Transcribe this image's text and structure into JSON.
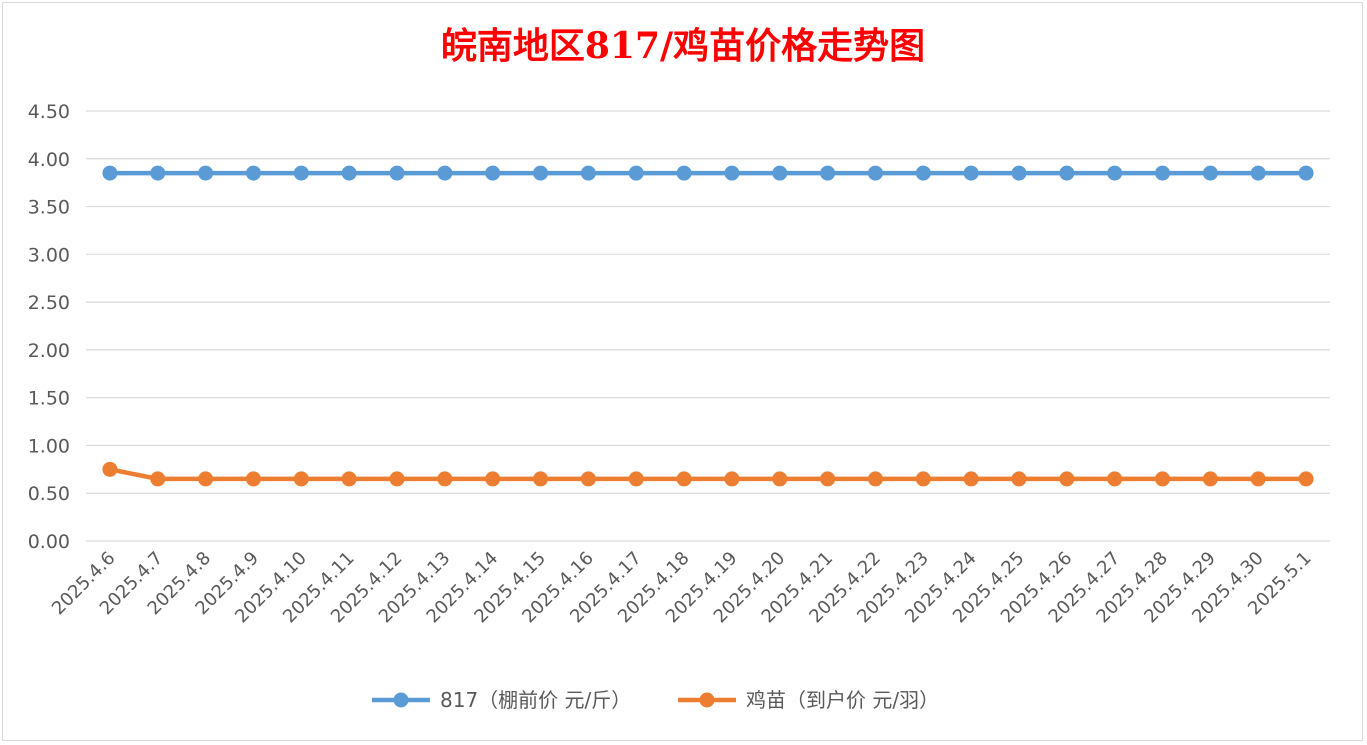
{
  "chart_data": {
    "type": "line",
    "title": "皖南地区817/鸡苗价格走势图",
    "categories": [
      "2025.4.6",
      "2025.4.7",
      "2025.4.8",
      "2025.4.9",
      "2025.4.10",
      "2025.4.11",
      "2025.4.12",
      "2025.4.13",
      "2025.4.14",
      "2025.4.15",
      "2025.4.16",
      "2025.4.17",
      "2025.4.18",
      "2025.4.19",
      "2025.4.20",
      "2025.4.21",
      "2025.4.22",
      "2025.4.23",
      "2025.4.24",
      "2025.4.25",
      "2025.4.26",
      "2025.4.27",
      "2025.4.28",
      "2025.4.29",
      "2025.4.30",
      "2025.5.1"
    ],
    "series": [
      {
        "name": "817（棚前价 元/斤）",
        "color": "#5b9bd5",
        "values": [
          3.85,
          3.85,
          3.85,
          3.85,
          3.85,
          3.85,
          3.85,
          3.85,
          3.85,
          3.85,
          3.85,
          3.85,
          3.85,
          3.85,
          3.85,
          3.85,
          3.85,
          3.85,
          3.85,
          3.85,
          3.85,
          3.85,
          3.85,
          3.85,
          3.85,
          3.85
        ]
      },
      {
        "name": "鸡苗（到户价 元/羽）",
        "color": "#ed7d31",
        "values": [
          0.75,
          0.65,
          0.65,
          0.65,
          0.65,
          0.65,
          0.65,
          0.65,
          0.65,
          0.65,
          0.65,
          0.65,
          0.65,
          0.65,
          0.65,
          0.65,
          0.65,
          0.65,
          0.65,
          0.65,
          0.65,
          0.65,
          0.65,
          0.65,
          0.65,
          0.65
        ]
      }
    ],
    "yticks": [
      "0.00",
      "0.50",
      "1.00",
      "1.50",
      "2.00",
      "2.50",
      "3.00",
      "3.50",
      "4.00",
      "4.50"
    ],
    "ylim": [
      0,
      4.5
    ],
    "grid": true,
    "legend": "bottom"
  }
}
